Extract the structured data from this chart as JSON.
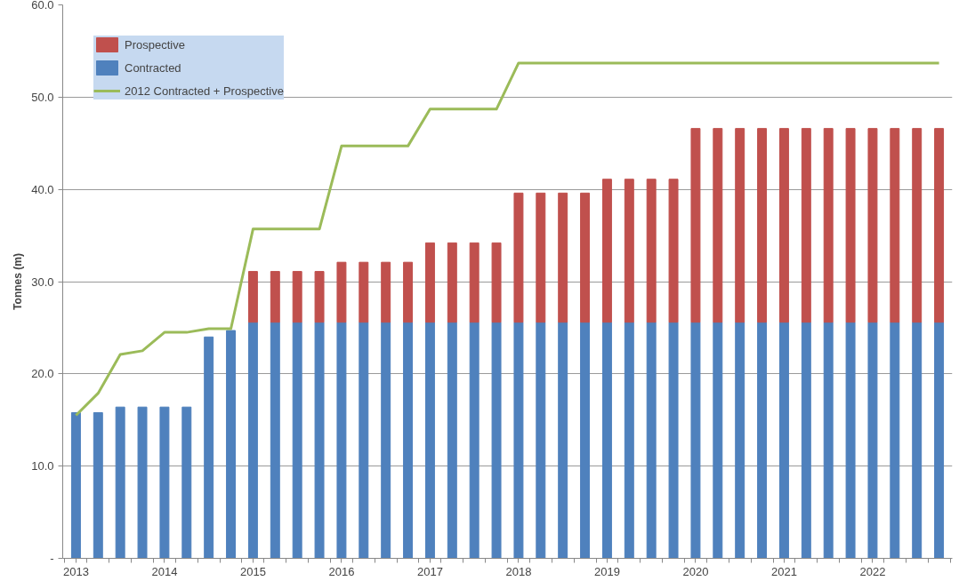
{
  "chart_data": {
    "type": "bar",
    "stacked": true,
    "ylabel": "Tonnes (m)",
    "categories": [
      "2013",
      null,
      null,
      null,
      "2014",
      null,
      null,
      null,
      "2015",
      null,
      null,
      null,
      "2016",
      null,
      null,
      null,
      "2017",
      null,
      null,
      null,
      "2018",
      null,
      null,
      null,
      "2019",
      null,
      null,
      null,
      "2020",
      null,
      null,
      null,
      "2021",
      null,
      null,
      null,
      "2022",
      null,
      null,
      null
    ],
    "series": [
      {
        "name": "Contracted",
        "color": "#4f81bd",
        "values": [
          15.8,
          15.8,
          16.4,
          16.4,
          16.4,
          16.4,
          24.0,
          24.7,
          25.6,
          25.6,
          25.6,
          25.6,
          25.6,
          25.6,
          25.6,
          25.6,
          25.6,
          25.6,
          25.6,
          25.6,
          25.6,
          25.6,
          25.6,
          25.6,
          25.6,
          25.6,
          25.6,
          25.6,
          25.6,
          25.6,
          25.6,
          25.6,
          25.6,
          25.6,
          25.6,
          25.6,
          25.6,
          25.6,
          25.6,
          25.6
        ]
      },
      {
        "name": "Prospective",
        "color": "#c0504d",
        "values": [
          null,
          null,
          null,
          null,
          null,
          null,
          null,
          null,
          5.5,
          5.5,
          5.5,
          5.5,
          6.5,
          6.5,
          6.5,
          6.5,
          8.6,
          8.6,
          8.6,
          8.6,
          14.0,
          14.0,
          14.0,
          14.0,
          15.5,
          15.5,
          15.5,
          15.5,
          21.0,
          21.0,
          21.0,
          21.0,
          21.0,
          21.0,
          21.0,
          21.0,
          21.0,
          21.0,
          21.0,
          21.0
        ]
      },
      {
        "name": "2012 Contracted + Prospective",
        "type": "line",
        "color": "#9bbb59",
        "values": [
          15.5,
          17.9,
          22.1,
          22.5,
          24.5,
          24.5,
          24.9,
          24.9,
          35.7,
          35.7,
          35.7,
          35.7,
          44.7,
          44.7,
          44.7,
          44.7,
          48.7,
          48.7,
          48.7,
          48.7,
          53.7,
          53.7,
          53.7,
          53.7,
          53.7,
          53.7,
          53.7,
          53.7,
          53.7,
          53.7,
          53.7,
          53.7,
          53.7,
          53.7,
          53.7,
          53.7,
          53.7,
          53.7,
          53.7,
          53.7
        ]
      }
    ],
    "ylim": [
      0,
      60
    ],
    "yticks": [
      {
        "value": 0,
        "label": "-"
      },
      {
        "value": 10,
        "label": "10.0"
      },
      {
        "value": 20,
        "label": "20.0"
      },
      {
        "value": 30,
        "label": "30.0"
      },
      {
        "value": 40,
        "label": "40.0"
      },
      {
        "value": 50,
        "label": "50.0"
      },
      {
        "value": 60,
        "label": "60.0"
      }
    ],
    "grid": "y",
    "legend": "top left"
  }
}
